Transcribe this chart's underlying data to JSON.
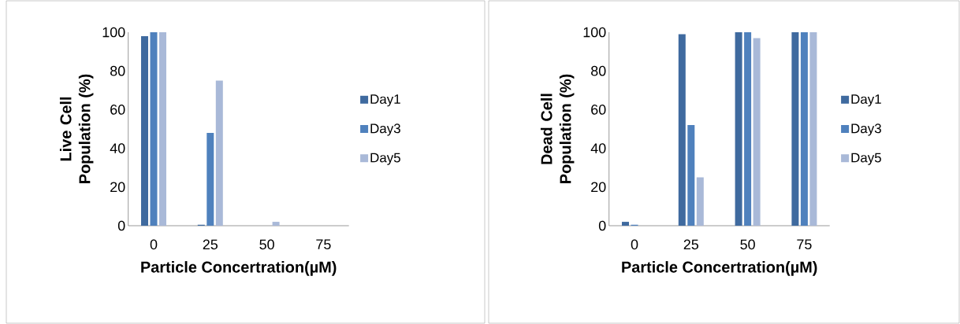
{
  "chart_data": [
    {
      "type": "bar",
      "xlabel": "Particle Concertration(µM)",
      "ylabel": "Live Cell Population (%)",
      "categories": [
        "0",
        "25",
        "50",
        "75"
      ],
      "series": [
        {
          "name": "Day1",
          "color": "#3f6a9f",
          "values": [
            98,
            0.5,
            0,
            0
          ]
        },
        {
          "name": "Day3",
          "color": "#4f81bd",
          "values": [
            100,
            48,
            0,
            0
          ]
        },
        {
          "name": "Day5",
          "color": "#a9b9d8",
          "values": [
            100,
            75,
            2,
            0
          ]
        }
      ],
      "ylim": [
        0,
        100
      ],
      "yticks": [
        0,
        20,
        40,
        60,
        80,
        100
      ],
      "legend": "right"
    },
    {
      "type": "bar",
      "xlabel": "Particle Concertration(µM)",
      "ylabel": "Dead Cell Population (%)",
      "categories": [
        "0",
        "25",
        "50",
        "75"
      ],
      "series": [
        {
          "name": "Day1",
          "color": "#3f6a9f",
          "values": [
            2,
            99,
            100,
            100
          ]
        },
        {
          "name": "Day3",
          "color": "#4f81bd",
          "values": [
            0.5,
            52,
            100,
            100
          ]
        },
        {
          "name": "Day5",
          "color": "#a9b9d8",
          "values": [
            0,
            25,
            97,
            100
          ]
        }
      ],
      "ylim": [
        0,
        100
      ],
      "yticks": [
        0,
        20,
        40,
        60,
        80,
        100
      ],
      "legend": "right"
    }
  ]
}
